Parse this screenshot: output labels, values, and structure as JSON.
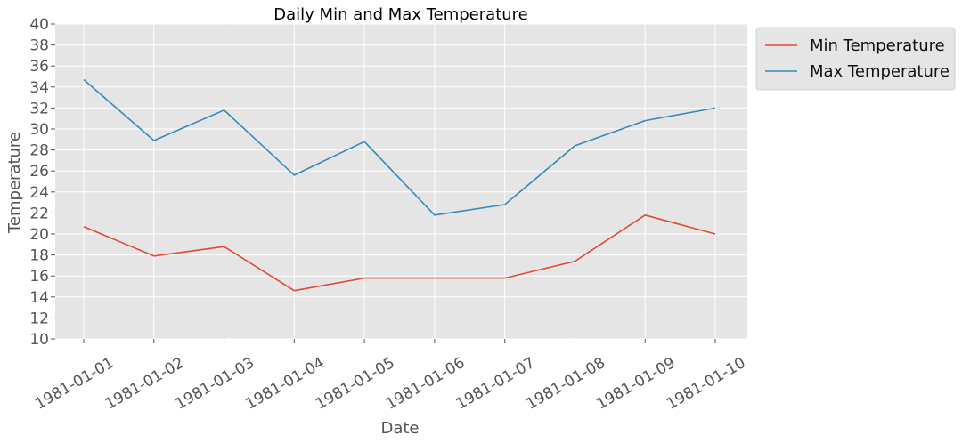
{
  "chart_data": {
    "type": "line",
    "title": "Daily Min and Max Temperature",
    "xlabel": "Date",
    "ylabel": "Temperature",
    "categories": [
      "1981-01-01",
      "1981-01-02",
      "1981-01-03",
      "1981-01-04",
      "1981-01-05",
      "1981-01-06",
      "1981-01-07",
      "1981-01-08",
      "1981-01-09",
      "1981-01-10"
    ],
    "ylim": [
      10,
      40
    ],
    "yticks": [
      "10",
      "12",
      "14",
      "16",
      "18",
      "20",
      "22",
      "24",
      "26",
      "28",
      "30",
      "32",
      "34",
      "36",
      "38",
      "40"
    ],
    "grid": true,
    "legend_position": "outside-top-right",
    "series": [
      {
        "name": "Min Temperature",
        "color": "#E24A33",
        "values": [
          20.7,
          17.9,
          18.8,
          14.6,
          15.8,
          15.8,
          15.8,
          17.4,
          21.8,
          20.0
        ]
      },
      {
        "name": "Max Temperature",
        "color": "#348ABD",
        "values": [
          34.7,
          28.9,
          31.8,
          25.6,
          28.8,
          21.8,
          22.8,
          28.4,
          30.8,
          32.0
        ]
      }
    ]
  },
  "colors": {
    "plot_background": "#E5E5E5",
    "grid": "#FFFFFF",
    "legend_background": "#E5E5E5"
  }
}
